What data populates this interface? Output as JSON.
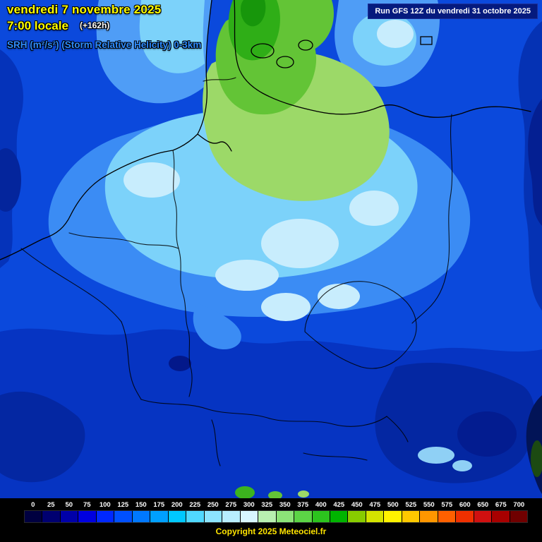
{
  "header": {
    "date": "vendredi 7 novembre 2025",
    "time": "7:00 locale",
    "offset": "(+162h)",
    "parameter": "SRH (m²/s²) (Storm Relative Helicity) 0-3km",
    "run_info": "Run GFS 12Z du vendredi 31 octobre 2025"
  },
  "legend": {
    "values": [
      "0",
      "25",
      "50",
      "75",
      "100",
      "125",
      "150",
      "175",
      "200",
      "225",
      "250",
      "275",
      "300",
      "325",
      "350",
      "375",
      "400",
      "425",
      "450",
      "475",
      "500",
      "525",
      "550",
      "575",
      "600",
      "650",
      "675",
      "700"
    ],
    "colors": [
      "#000040",
      "#000070",
      "#0000a8",
      "#0000e0",
      "#0028ff",
      "#0050ff",
      "#0078ff",
      "#00a0ff",
      "#00c8ff",
      "#50d8ff",
      "#8ce4ff",
      "#b8eeff",
      "#d8f6ff",
      "#b8f0b0",
      "#8ce478",
      "#5cd446",
      "#2cc41e",
      "#00b400",
      "#88cc00",
      "#d4e400",
      "#fff200",
      "#ffc800",
      "#ff9600",
      "#ff6000",
      "#f03000",
      "#d01010",
      "#a80000",
      "#700000"
    ]
  },
  "footer": {
    "copyright": "Copyright 2025 Meteociel.fr"
  },
  "colors": {
    "title_yellow": "#ffff00",
    "parameter_blue": "#2e8cff",
    "run_box_navy": "#051a7e",
    "copyright_yellow": "#ffe400",
    "map_base_blue": "#0b49dc",
    "map_deep_blue": "#0634c2",
    "map_darker_blue": "#0427a2",
    "map_light_blue": "#3b8cf4",
    "map_cyan": "#7cd2fa",
    "map_pale_cyan": "#c8edfd",
    "map_light_green": "#9cd968",
    "map_green": "#63c436",
    "map_bright_green": "#2fae17"
  }
}
